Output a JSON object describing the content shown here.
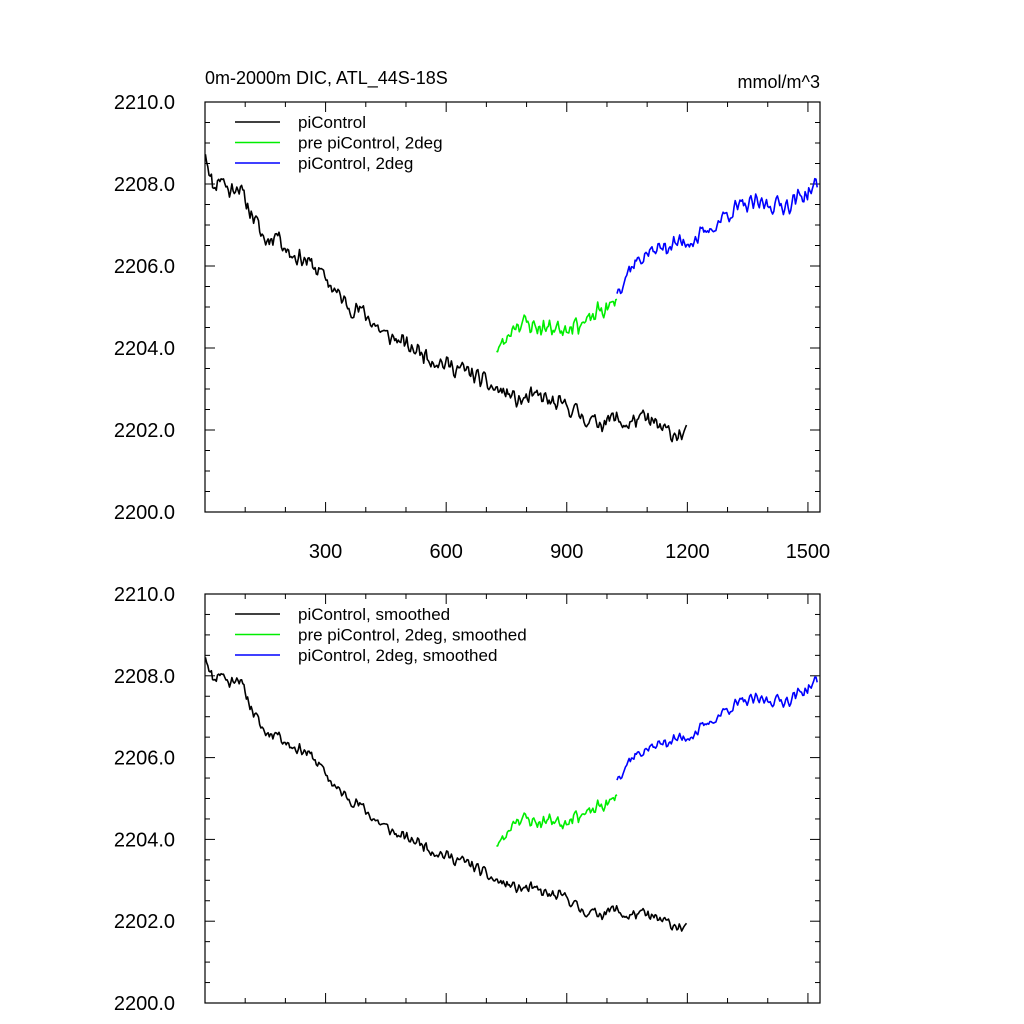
{
  "chart_data": [
    {
      "type": "line",
      "title": "0m-2000m DIC, ATL_44S-18S",
      "units": "mmol/m^3",
      "xlim": [
        0,
        1530
      ],
      "ylim": [
        2200,
        2210
      ],
      "xticks": [
        300,
        600,
        900,
        1200,
        1500
      ],
      "xtick_labels": [
        "300",
        "600",
        "900",
        "1200",
        "1500"
      ],
      "yticks": [
        2200,
        2202,
        2204,
        2206,
        2208,
        2210
      ],
      "ytick_labels": [
        "2200.0",
        "2202.0",
        "2204.0",
        "2206.0",
        "2208.0",
        "2210.0"
      ],
      "legend_position": "top-left",
      "series": [
        {
          "name": "piControl",
          "color": "#000000",
          "anchors": [
            [
              1,
              2208.8
            ],
            [
              20,
              2207.9
            ],
            [
              40,
              2208.2
            ],
            [
              60,
              2207.8
            ],
            [
              80,
              2208.0
            ],
            [
              100,
              2207.6
            ],
            [
              120,
              2207.2
            ],
            [
              150,
              2206.6
            ],
            [
              180,
              2206.8
            ],
            [
              210,
              2206.3
            ],
            [
              240,
              2206.2
            ],
            [
              270,
              2206.0
            ],
            [
              300,
              2205.7
            ],
            [
              330,
              2205.3
            ],
            [
              360,
              2205.0
            ],
            [
              390,
              2204.9
            ],
            [
              420,
              2204.6
            ],
            [
              450,
              2204.3
            ],
            [
              480,
              2204.2
            ],
            [
              510,
              2204.0
            ],
            [
              540,
              2203.9
            ],
            [
              570,
              2203.7
            ],
            [
              600,
              2203.6
            ],
            [
              630,
              2203.5
            ],
            [
              660,
              2203.4
            ],
            [
              690,
              2203.2
            ],
            [
              720,
              2203.0
            ],
            [
              750,
              2202.9
            ],
            [
              780,
              2202.7
            ],
            [
              810,
              2202.8
            ],
            [
              840,
              2202.8
            ],
            [
              870,
              2202.6
            ],
            [
              900,
              2202.6
            ],
            [
              930,
              2202.4
            ],
            [
              960,
              2202.2
            ],
            [
              990,
              2202.2
            ],
            [
              1020,
              2202.3
            ],
            [
              1050,
              2202.1
            ],
            [
              1080,
              2202.3
            ],
            [
              1110,
              2202.2
            ],
            [
              1140,
              2202.0
            ],
            [
              1170,
              2201.9
            ],
            [
              1200,
              2201.9
            ]
          ],
          "noise": 0.26,
          "seed": 11
        },
        {
          "name": "pre piControl, 2deg",
          "color": "#00ee00",
          "anchors": [
            [
              725,
              2204.0
            ],
            [
              745,
              2204.1
            ],
            [
              770,
              2204.6
            ],
            [
              800,
              2204.6
            ],
            [
              830,
              2204.5
            ],
            [
              860,
              2204.5
            ],
            [
              890,
              2204.5
            ],
            [
              920,
              2204.6
            ],
            [
              950,
              2204.6
            ],
            [
              980,
              2204.9
            ],
            [
              1010,
              2205.0
            ],
            [
              1025,
              2205.2
            ]
          ],
          "noise": 0.28,
          "seed": 23
        },
        {
          "name": "piControl, 2deg",
          "color": "#0000ff",
          "anchors": [
            [
              1025,
              2205.4
            ],
            [
              1060,
              2206.0
            ],
            [
              1100,
              2206.3
            ],
            [
              1150,
              2206.5
            ],
            [
              1200,
              2206.6
            ],
            [
              1250,
              2206.8
            ],
            [
              1300,
              2207.3
            ],
            [
              1350,
              2207.5
            ],
            [
              1400,
              2207.5
            ],
            [
              1450,
              2207.5
            ],
            [
              1500,
              2207.8
            ],
            [
              1525,
              2208.0
            ]
          ],
          "noise": 0.27,
          "seed": 37
        }
      ]
    },
    {
      "type": "line",
      "title": "",
      "units": "",
      "xlim": [
        0,
        1530
      ],
      "ylim": [
        2200,
        2210
      ],
      "xticks": [
        300,
        600,
        900,
        1200,
        1500
      ],
      "xtick_labels": [],
      "yticks": [
        2200,
        2202,
        2204,
        2206,
        2208,
        2210
      ],
      "ytick_labels": [
        "2200.0",
        "2202.0",
        "2204.0",
        "2206.0",
        "2208.0",
        "2210.0"
      ],
      "legend_position": "top-left",
      "series": [
        {
          "name": "piControl, smoothed",
          "color": "#000000",
          "anchors": [
            [
              1,
              2208.5
            ],
            [
              20,
              2207.9
            ],
            [
              40,
              2208.1
            ],
            [
              60,
              2207.8
            ],
            [
              80,
              2208.0
            ],
            [
              100,
              2207.6
            ],
            [
              120,
              2207.1
            ],
            [
              150,
              2206.6
            ],
            [
              180,
              2206.6
            ],
            [
              210,
              2206.3
            ],
            [
              240,
              2206.2
            ],
            [
              270,
              2206.0
            ],
            [
              300,
              2205.6
            ],
            [
              330,
              2205.2
            ],
            [
              360,
              2205.0
            ],
            [
              390,
              2204.8
            ],
            [
              420,
              2204.5
            ],
            [
              450,
              2204.3
            ],
            [
              480,
              2204.1
            ],
            [
              510,
              2204.0
            ],
            [
              540,
              2203.9
            ],
            [
              570,
              2203.7
            ],
            [
              600,
              2203.6
            ],
            [
              630,
              2203.5
            ],
            [
              660,
              2203.4
            ],
            [
              690,
              2203.2
            ],
            [
              720,
              2203.0
            ],
            [
              750,
              2202.9
            ],
            [
              780,
              2202.8
            ],
            [
              810,
              2202.8
            ],
            [
              840,
              2202.7
            ],
            [
              870,
              2202.6
            ],
            [
              900,
              2202.6
            ],
            [
              930,
              2202.3
            ],
            [
              960,
              2202.2
            ],
            [
              990,
              2202.2
            ],
            [
              1020,
              2202.3
            ],
            [
              1050,
              2202.1
            ],
            [
              1080,
              2202.2
            ],
            [
              1110,
              2202.1
            ],
            [
              1140,
              2202.0
            ],
            [
              1170,
              2201.9
            ],
            [
              1200,
              2201.8
            ]
          ],
          "noise": 0.17,
          "seed": 11
        },
        {
          "name": "pre piControl, 2deg, smoothed",
          "color": "#00ee00",
          "anchors": [
            [
              725,
              2203.9
            ],
            [
              745,
              2204.0
            ],
            [
              770,
              2204.5
            ],
            [
              800,
              2204.5
            ],
            [
              830,
              2204.4
            ],
            [
              860,
              2204.5
            ],
            [
              890,
              2204.4
            ],
            [
              920,
              2204.6
            ],
            [
              950,
              2204.6
            ],
            [
              980,
              2204.8
            ],
            [
              1010,
              2204.9
            ],
            [
              1025,
              2205.1
            ]
          ],
          "noise": 0.2,
          "seed": 23
        },
        {
          "name": "piControl, 2deg, smoothed",
          "color": "#0000ff",
          "anchors": [
            [
              1025,
              2205.5
            ],
            [
              1060,
              2206.0
            ],
            [
              1100,
              2206.2
            ],
            [
              1150,
              2206.4
            ],
            [
              1200,
              2206.5
            ],
            [
              1250,
              2206.8
            ],
            [
              1300,
              2207.2
            ],
            [
              1350,
              2207.4
            ],
            [
              1400,
              2207.4
            ],
            [
              1450,
              2207.4
            ],
            [
              1500,
              2207.7
            ],
            [
              1525,
              2207.9
            ]
          ],
          "noise": 0.18,
          "seed": 37
        }
      ]
    }
  ]
}
